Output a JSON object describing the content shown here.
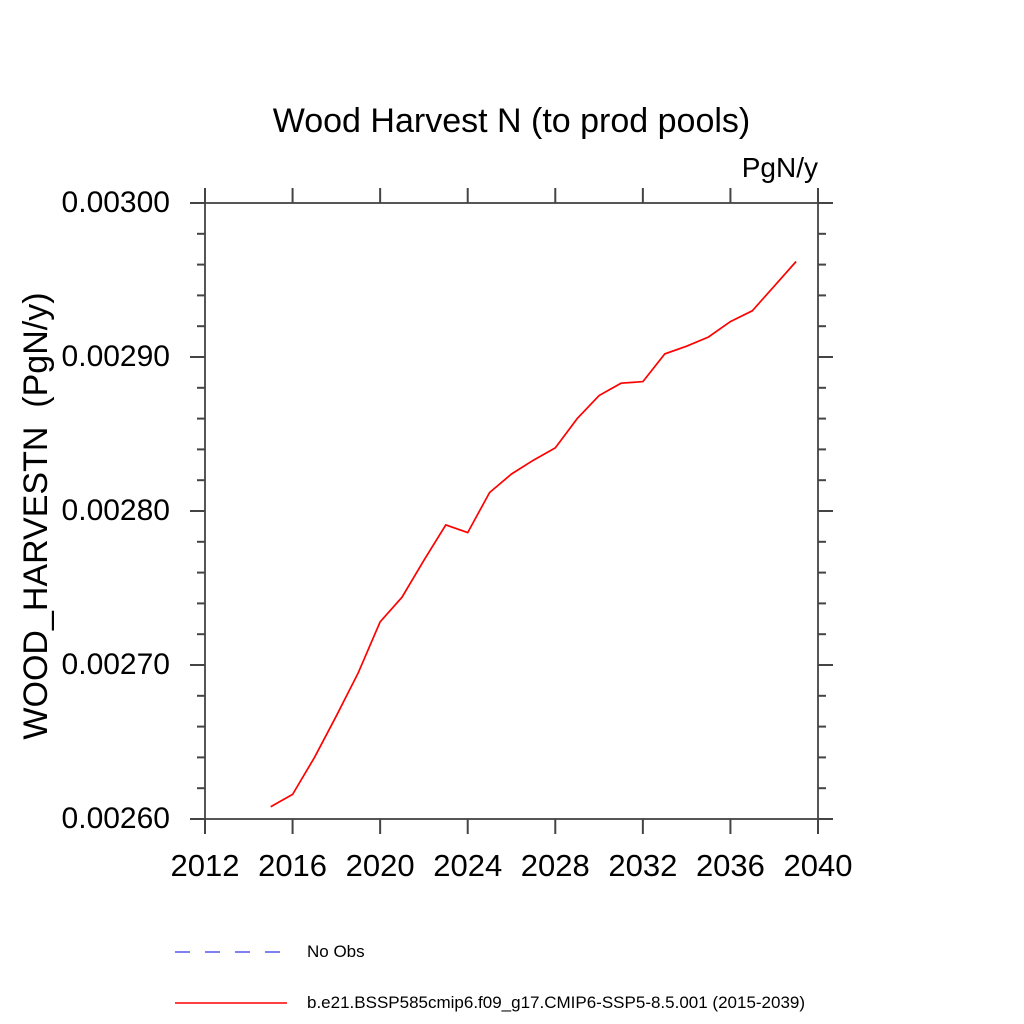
{
  "title": "Wood Harvest N (to prod pools)",
  "unit_label": "PgN/y",
  "y_axis_title": "WOOD_HARVESTN  (PgN/y)",
  "colors": {
    "series_line": "#ff0000",
    "no_obs_line": "#8080f0",
    "axis": "#444444",
    "text": "#000000"
  },
  "legend": {
    "no_obs_label": "No Obs",
    "series_label": "b.e21.BSSP585cmip6.f09_g17.CMIP6-SSP5-8.5.001 (2015-2039)"
  },
  "chart_data": {
    "type": "line",
    "title": "Wood Harvest N (to prod pools)",
    "xlabel": "",
    "ylabel": "WOOD_HARVESTN  (PgN/y)",
    "unit": "PgN/y",
    "xlim": [
      2012,
      2040
    ],
    "ylim": [
      0.0026,
      0.003
    ],
    "x_major_ticks": [
      2012,
      2016,
      2020,
      2024,
      2028,
      2032,
      2036,
      2040
    ],
    "y_major_ticks": [
      0.0026,
      0.0027,
      0.0028,
      0.0029,
      0.003
    ],
    "y_minor_step": 2e-05,
    "y_tick_decimals": 5,
    "grid": false,
    "legend_position": "bottom-left",
    "series": [
      {
        "name": "b.e21.BSSP585cmip6.f09_g17.CMIP6-SSP5-8.5.001 (2015-2039)",
        "color": "#ff0000",
        "style": "solid",
        "x": [
          2015,
          2016,
          2017,
          2018,
          2019,
          2020,
          2021,
          2022,
          2023,
          2024,
          2025,
          2026,
          2027,
          2028,
          2029,
          2030,
          2031,
          2032,
          2033,
          2034,
          2035,
          2036,
          2037,
          2038,
          2039
        ],
        "y": [
          0.002608,
          0.002616,
          0.00264,
          0.002667,
          0.002695,
          0.002728,
          0.002744,
          0.002768,
          0.002791,
          0.002786,
          0.002812,
          0.002824,
          0.002833,
          0.002841,
          0.00286,
          0.002875,
          0.002883,
          0.002884,
          0.002902,
          0.002907,
          0.002913,
          0.002923,
          0.00293,
          0.002946,
          0.002962
        ]
      },
      {
        "name": "No Obs",
        "color": "#8080f0",
        "style": "dashed",
        "x": [],
        "y": []
      }
    ]
  }
}
